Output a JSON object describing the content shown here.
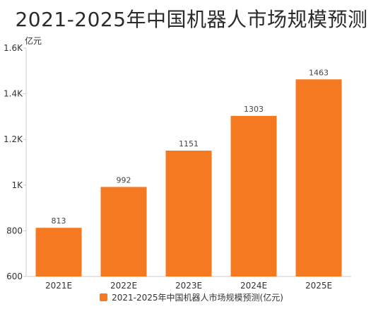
{
  "chart_data": {
    "type": "bar",
    "title": "2021-2025年中国机器人市场规模预测",
    "ylabel": "亿元",
    "categories": [
      "2021E",
      "2022E",
      "2023E",
      "2024E",
      "2025E"
    ],
    "series": [
      {
        "name": "2021-2025年中国机器人市场规模预测(亿元)",
        "values": [
          813,
          992,
          1151,
          1303,
          1463
        ]
      }
    ],
    "ylim": [
      600,
      1600
    ],
    "yticks": [
      600,
      800,
      1000,
      1200,
      1400,
      1600
    ],
    "ytick_labels": [
      "600",
      "800",
      "1K",
      "1.2K",
      "1.4K",
      "1.6K"
    ],
    "data_labels": [
      "813",
      "992",
      "1151",
      "1303",
      "1463"
    ],
    "legend_position": "bottom",
    "grid": false,
    "bar_color": "#f47920"
  }
}
